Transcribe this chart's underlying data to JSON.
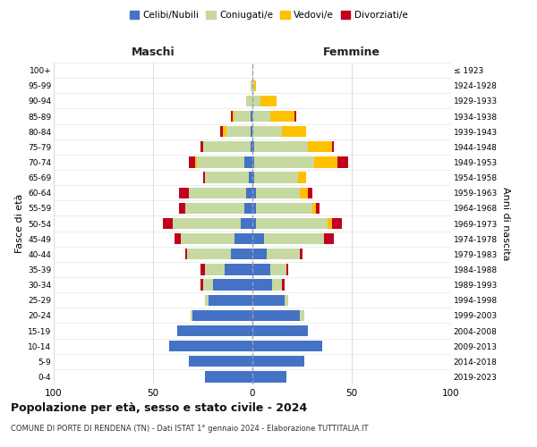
{
  "age_groups": [
    "0-4",
    "5-9",
    "10-14",
    "15-19",
    "20-24",
    "25-29",
    "30-34",
    "35-39",
    "40-44",
    "45-49",
    "50-54",
    "55-59",
    "60-64",
    "65-69",
    "70-74",
    "75-79",
    "80-84",
    "85-89",
    "90-94",
    "95-99",
    "100+"
  ],
  "birth_years": [
    "2019-2023",
    "2014-2018",
    "2009-2013",
    "2004-2008",
    "1999-2003",
    "1994-1998",
    "1989-1993",
    "1984-1988",
    "1979-1983",
    "1974-1978",
    "1969-1973",
    "1964-1968",
    "1959-1963",
    "1954-1958",
    "1949-1953",
    "1944-1948",
    "1939-1943",
    "1934-1938",
    "1929-1933",
    "1924-1928",
    "≤ 1923"
  ],
  "male": {
    "celibi": [
      24,
      32,
      42,
      38,
      30,
      22,
      20,
      14,
      11,
      9,
      6,
      4,
      3,
      2,
      4,
      1,
      1,
      1,
      0,
      0,
      0
    ],
    "coniugati": [
      0,
      0,
      0,
      0,
      1,
      2,
      5,
      10,
      22,
      27,
      34,
      30,
      29,
      22,
      24,
      24,
      12,
      8,
      3,
      1,
      0
    ],
    "vedovi": [
      0,
      0,
      0,
      0,
      0,
      0,
      0,
      0,
      0,
      0,
      0,
      0,
      0,
      0,
      1,
      0,
      2,
      1,
      0,
      0,
      0
    ],
    "divorziati": [
      0,
      0,
      0,
      0,
      0,
      0,
      1,
      2,
      1,
      3,
      5,
      3,
      5,
      1,
      3,
      1,
      1,
      1,
      0,
      0,
      0
    ]
  },
  "female": {
    "nubili": [
      17,
      26,
      35,
      28,
      24,
      16,
      10,
      9,
      7,
      6,
      2,
      2,
      2,
      1,
      1,
      1,
      0,
      0,
      0,
      0,
      0
    ],
    "coniugate": [
      0,
      0,
      0,
      0,
      2,
      2,
      5,
      8,
      17,
      30,
      36,
      28,
      22,
      22,
      30,
      27,
      15,
      9,
      4,
      1,
      0
    ],
    "vedove": [
      0,
      0,
      0,
      0,
      0,
      0,
      0,
      0,
      0,
      0,
      2,
      2,
      4,
      4,
      12,
      12,
      12,
      12,
      8,
      1,
      0
    ],
    "divorziate": [
      0,
      0,
      0,
      0,
      0,
      0,
      1,
      1,
      1,
      5,
      5,
      2,
      2,
      0,
      5,
      1,
      0,
      1,
      0,
      0,
      0
    ]
  },
  "color_celibi": "#4472c4",
  "color_coniugati": "#c5d9a0",
  "color_vedovi": "#ffc000",
  "color_divorziati": "#c0001e",
  "xlim": 100,
  "title_main": "Popolazione per età, sesso e stato civile - 2024",
  "title_sub": "COMUNE DI PORTE DI RENDENA (TN) - Dati ISTAT 1° gennaio 2024 - Elaborazione TUTTITALIA.IT",
  "ylabel_left": "Fasce di età",
  "ylabel_right": "Anni di nascita",
  "label_maschi": "Maschi",
  "label_femmine": "Femmine",
  "legend_labels": [
    "Celibi/Nubili",
    "Coniugati/e",
    "Vedovi/e",
    "Divorziati/e"
  ],
  "background_color": "#ffffff",
  "grid_color": "#cccccc",
  "bar_height": 0.72
}
